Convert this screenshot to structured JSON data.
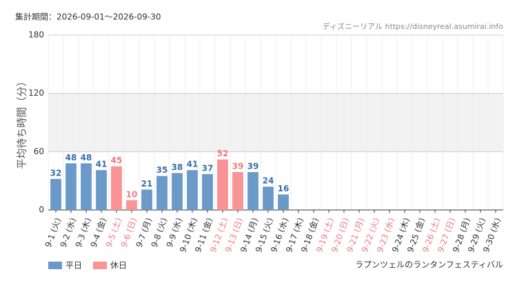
{
  "chart_data": {
    "type": "bar",
    "subtitle": "集計期間：2026-09-01〜2026-09-30",
    "source": "ディズニーリアル https://disneyreal.asumirai.info",
    "y_label": "平均待ち時間（分）",
    "title": "ラプンツェルのランタンフェスティバル",
    "categories": [
      "9-1 (火)",
      "9-2 (水)",
      "9-3 (木)",
      "9-4 (金)",
      "9-5 (土)",
      "9-6 (日)",
      "9-7 (月)",
      "9-8 (火)",
      "9-9 (水)",
      "9-10 (木)",
      "9-11 (金)",
      "9-12 (土)",
      "9-13 (日)",
      "9-14 (月)",
      "9-15 (火)",
      "9-16 (水)",
      "9-17 (木)",
      "9-18 (金)",
      "9-19 (土)",
      "9-20 (日)",
      "9-21 (月)",
      "9-22 (火)",
      "9-23 (水)",
      "9-24 (木)",
      "9-25 (金)",
      "9-26 (土)",
      "9-27 (日)",
      "9-28 (月)",
      "9-29 (火)",
      "9-30 (水)"
    ],
    "category_colors": [
      "#333",
      "#333",
      "#333",
      "#333",
      "#f07880",
      "#f07880",
      "#333",
      "#333",
      "#333",
      "#333",
      "#333",
      "#f07880",
      "#f07880",
      "#333",
      "#333",
      "#333",
      "#333",
      "#333",
      "#f07880",
      "#f07880",
      "#f07880",
      "#f07880",
      "#f07880",
      "#333",
      "#333",
      "#f07880",
      "#f07880",
      "#333",
      "#333",
      "#333"
    ],
    "series": [
      {
        "name": "平日",
        "color": "#6b9ac8",
        "values": [
          32,
          48,
          48,
          41,
          null,
          null,
          21,
          35,
          38,
          41,
          37,
          null,
          null,
          39,
          24,
          16,
          null,
          null,
          null,
          null,
          null,
          null,
          null,
          null,
          null,
          null,
          null,
          null,
          null,
          null
        ]
      },
      {
        "name": "休日",
        "color": "#f99396",
        "values": [
          null,
          null,
          null,
          null,
          45,
          10,
          null,
          null,
          null,
          null,
          null,
          52,
          39,
          null,
          null,
          null,
          null,
          null,
          null,
          null,
          null,
          null,
          null,
          null,
          null,
          null,
          null,
          null,
          null,
          null
        ]
      }
    ],
    "label_colors": [
      "#3b6ea5",
      "#f07880"
    ],
    "ylim": [
      0,
      180
    ],
    "yticks": [
      0,
      60,
      120,
      180
    ],
    "band": [
      60,
      120
    ],
    "grid": true
  }
}
